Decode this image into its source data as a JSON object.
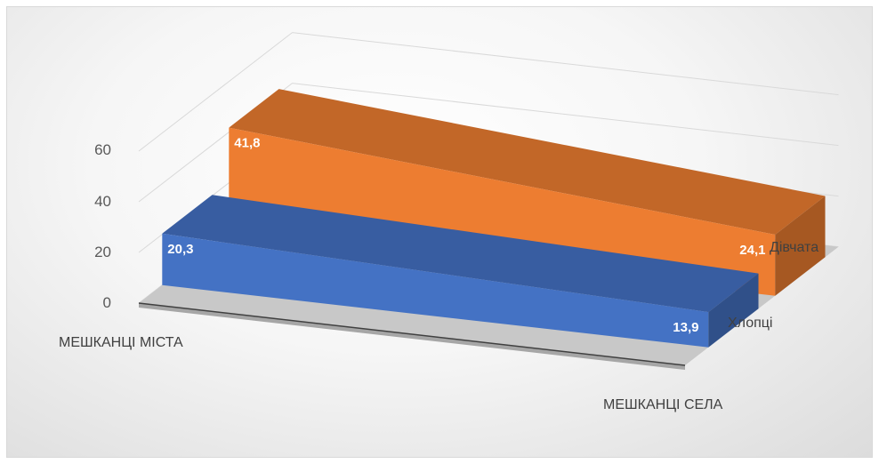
{
  "chart_data": {
    "type": "bar",
    "subtype": "3d-ribbon",
    "title": "",
    "xlabel": "",
    "ylabel": "",
    "ylim": [
      0,
      60
    ],
    "yticks": [
      "0",
      "20",
      "40",
      "60"
    ],
    "grid": true,
    "legend": "none",
    "categories": [
      "МЕШКАНЦІ МІСТА",
      "МЕШКАНЦІ СЕЛА"
    ],
    "series": [
      {
        "name": "Хлопці",
        "values": [
          20.3,
          13.9
        ],
        "labels": [
          "20,3",
          "13,9"
        ],
        "color": "#4472c4"
      },
      {
        "name": "Дівчата",
        "values": [
          41.8,
          24.1
        ],
        "labels": [
          "41,8",
          "24,1"
        ],
        "color": "#ed7d31"
      }
    ]
  }
}
